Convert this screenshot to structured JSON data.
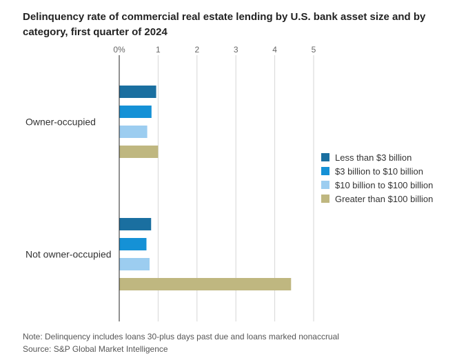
{
  "title": "Delinquency rate of commercial real estate lending by U.S. bank asset size and by category, first quarter of 2024",
  "note": "Note: Delinquency includes loans 30-plus days past due and loans marked nonaccrual",
  "source": "Source: S&P Global Market Intelligence",
  "chart_data": {
    "type": "bar",
    "orientation": "horizontal",
    "title": "Delinquency rate of commercial real estate lending by U.S. bank asset size and by category, first quarter of 2024",
    "categories": [
      "Owner-occupied",
      "Not owner-occupied"
    ],
    "series": [
      {
        "name": "Less than $3 billion",
        "color": "#1a6fa0",
        "values": [
          0.95,
          0.82
        ]
      },
      {
        "name": "$3 billion to $10 billion",
        "color": "#1591d6",
        "values": [
          0.83,
          0.7
        ]
      },
      {
        "name": "$10 billion to $100 billion",
        "color": "#9ccdf0",
        "values": [
          0.72,
          0.78
        ]
      },
      {
        "name": "Greater than $100 billion",
        "color": "#bfb780",
        "values": [
          1.0,
          4.42
        ]
      }
    ],
    "xlim": [
      0,
      5
    ],
    "x_ticks": [
      "0%",
      "1",
      "2",
      "3",
      "4",
      "5"
    ],
    "grid": true,
    "legend_position": "right"
  }
}
